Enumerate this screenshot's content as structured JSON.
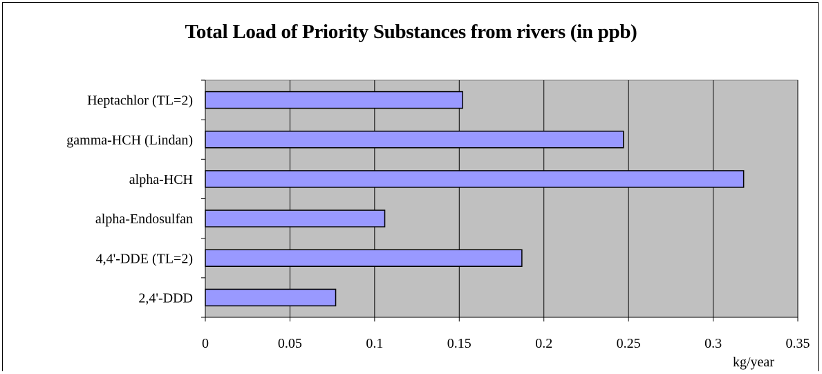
{
  "chart_data": {
    "type": "bar",
    "orientation": "horizontal",
    "title": "Total  Load of Priority Substances from rivers (in ppb)",
    "xlabel": "kg/year",
    "ylabel": "",
    "categories": [
      "Heptachlor (TL=2)",
      "gamma-HCH (Lindan)",
      "alpha-HCH",
      "alpha-Endosulfan",
      "4,4'-DDE (TL=2)",
      "2,4'-DDD"
    ],
    "values": [
      0.152,
      0.247,
      0.318,
      0.106,
      0.187,
      0.077
    ],
    "xlim": [
      0,
      0.35
    ],
    "xticks": [
      "0",
      "0.05",
      "0.1",
      "0.15",
      "0.2",
      "0.25",
      "0.3",
      "0.35"
    ],
    "grid": "vertical",
    "legend": "none",
    "colors": {
      "bar_fill": "#9999ff",
      "bar_stroke": "#000000",
      "plot_background": "#c0c0c0",
      "gridline": "#000000"
    }
  }
}
